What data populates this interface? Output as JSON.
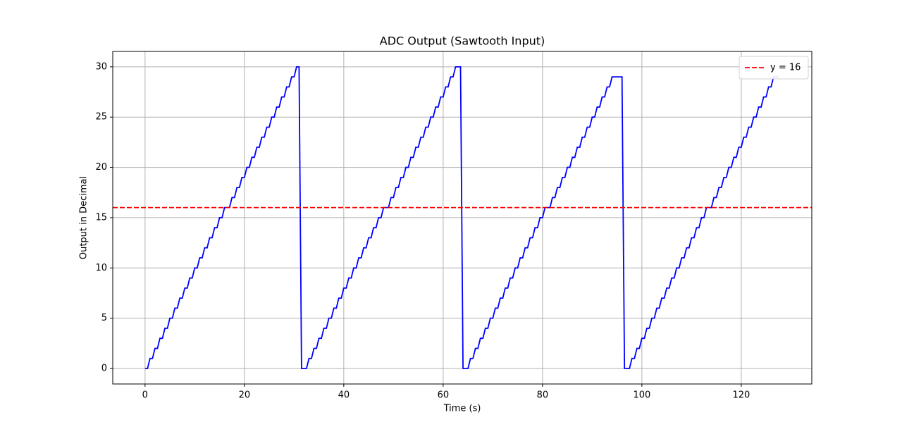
{
  "chart_data": {
    "type": "line",
    "title": "ADC Output (Sawtooth Input)",
    "x_label": "Time (s)",
    "y_label": "Output in Decimal",
    "x": [
      0,
      0.5,
      1,
      1.5,
      2,
      2.5,
      3,
      3.5,
      4,
      4.5,
      5,
      5.5,
      6,
      6.5,
      7,
      7.5,
      8,
      8.5,
      9,
      9.5,
      10,
      10.5,
      11,
      11.5,
      12,
      12.5,
      13,
      13.5,
      14,
      14.5,
      15,
      15.5,
      16,
      16.5,
      17,
      17.5,
      18,
      18.5,
      19,
      19.5,
      20,
      20.5,
      21,
      21.5,
      22,
      22.5,
      23,
      23.5,
      24,
      24.5,
      25,
      25.5,
      26,
      26.5,
      27,
      27.5,
      28,
      28.5,
      29,
      29.5,
      30,
      30.5,
      31,
      31.5,
      32,
      32.5,
      33,
      33.5,
      34,
      34.5,
      35,
      35.5,
      36,
      36.5,
      37,
      37.5,
      38,
      38.5,
      39,
      39.5,
      40,
      40.5,
      41,
      41.5,
      42,
      42.5,
      43,
      43.5,
      44,
      44.5,
      45,
      45.5,
      46,
      46.5,
      47,
      47.5,
      48,
      48.5,
      49,
      49.5,
      50,
      50.5,
      51,
      51.5,
      52,
      52.5,
      53,
      53.5,
      54,
      54.5,
      55,
      55.5,
      56,
      56.5,
      57,
      57.5,
      58,
      58.5,
      59,
      59.5,
      60,
      60.5,
      61,
      61.5,
      62,
      62.5,
      63,
      63.5,
      64,
      64.5,
      65,
      65.5,
      66,
      66.5,
      67,
      67.5,
      68,
      68.5,
      69,
      69.5,
      70,
      70.5,
      71,
      71.5,
      72,
      72.5,
      73,
      73.5,
      74,
      74.5,
      75,
      75.5,
      76,
      76.5,
      77,
      77.5,
      78,
      78.5,
      79,
      79.5,
      80,
      80.5,
      81,
      81.5,
      82,
      82.5,
      83,
      83.5,
      84,
      84.5,
      85,
      85.5,
      86,
      86.5,
      87,
      87.5,
      88,
      88.5,
      89,
      89.5,
      90,
      90.5,
      91,
      91.5,
      92,
      92.5,
      93,
      93.5,
      94,
      94.5,
      95,
      95.5,
      96,
      96.5,
      97,
      97.5,
      98,
      98.5,
      99,
      99.5,
      100,
      100.5,
      101,
      101.5,
      102,
      102.5,
      103,
      103.5,
      104,
      104.5,
      105,
      105.5,
      106,
      106.5,
      107,
      107.5,
      108,
      108.5,
      109,
      109.5,
      110,
      110.5,
      111,
      111.5,
      112,
      112.5,
      113,
      113.5,
      114,
      114.5,
      115,
      115.5,
      116,
      116.5,
      117,
      117.5,
      118,
      118.5,
      119,
      119.5,
      120,
      120.5,
      121,
      121.5,
      122,
      122.5,
      123,
      123.5,
      124,
      124.5,
      125,
      125.5,
      126,
      126.5,
      127,
      127.5
    ],
    "series": [
      {
        "color": "#0000ff",
        "values": [
          0,
          0,
          1,
          1,
          2,
          2,
          3,
          3,
          4,
          4,
          5,
          5,
          6,
          6,
          7,
          7,
          8,
          8,
          9,
          9,
          10,
          10,
          11,
          11,
          12,
          12,
          13,
          13,
          14,
          14,
          15,
          15,
          16,
          16,
          16,
          17,
          17,
          18,
          18,
          19,
          19,
          20,
          20,
          21,
          21,
          22,
          22,
          23,
          23,
          24,
          24,
          25,
          25,
          26,
          26,
          27,
          27,
          28,
          28,
          29,
          29,
          30,
          30,
          0,
          0,
          0,
          1,
          1,
          2,
          2,
          3,
          3,
          4,
          4,
          5,
          5,
          6,
          6,
          7,
          7,
          8,
          8,
          9,
          9,
          10,
          10,
          11,
          11,
          12,
          12,
          13,
          13,
          14,
          14,
          15,
          15,
          16,
          16,
          16,
          17,
          17,
          18,
          18,
          19,
          19,
          20,
          20,
          21,
          21,
          22,
          22,
          23,
          23,
          24,
          24,
          25,
          25,
          26,
          26,
          27,
          27,
          28,
          28,
          29,
          29,
          30,
          30,
          30,
          0,
          0,
          0,
          1,
          1,
          2,
          2,
          3,
          3,
          4,
          4,
          5,
          5,
          6,
          6,
          7,
          7,
          8,
          8,
          9,
          9,
          10,
          10,
          11,
          11,
          12,
          12,
          13,
          13,
          14,
          14,
          15,
          15,
          16,
          16,
          16,
          17,
          17,
          18,
          18,
          19,
          19,
          20,
          20,
          21,
          21,
          22,
          22,
          23,
          23,
          24,
          24,
          25,
          25,
          26,
          26,
          27,
          27,
          28,
          28,
          29,
          29,
          29,
          29,
          29,
          0,
          0,
          0,
          1,
          1,
          2,
          2,
          3,
          3,
          4,
          4,
          5,
          5,
          6,
          6,
          7,
          7,
          8,
          8,
          9,
          9,
          10,
          10,
          11,
          11,
          12,
          12,
          13,
          13,
          14,
          14,
          15,
          15,
          16,
          16,
          16,
          17,
          17,
          18,
          18,
          19,
          19,
          20,
          20,
          21,
          21,
          22,
          22,
          23,
          23,
          24,
          24,
          25,
          25,
          26,
          26,
          27,
          27,
          28,
          28,
          29,
          29,
          29
        ]
      }
    ],
    "reference_lines": [
      {
        "name": "y = 16",
        "value": 16,
        "color": "#ff0000",
        "style": "dashed"
      }
    ],
    "xlim": [
      -6.5,
      134.2
    ],
    "ylim": [
      -1.54,
      31.53
    ],
    "xticks": [
      0,
      20,
      40,
      60,
      80,
      100,
      120
    ],
    "yticks": [
      0,
      5,
      10,
      15,
      20,
      25,
      30
    ],
    "grid": true,
    "legend": "upper right"
  }
}
